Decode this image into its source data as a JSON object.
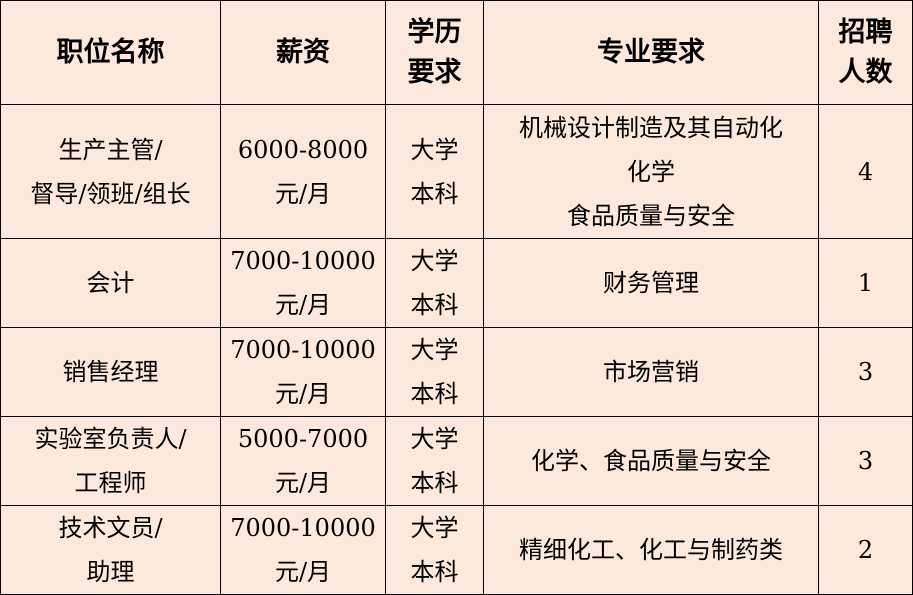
{
  "headers": [
    [
      "职位名称"
    ],
    [
      "薪资"
    ],
    [
      "学历",
      "要求"
    ],
    [
      "专业要求"
    ],
    [
      "招聘",
      "人数"
    ]
  ],
  "rows": [
    {
      "position": [
        "生产主管/",
        "督导/领班/组长"
      ],
      "salary": [
        "6000-8000",
        "元/月"
      ],
      "education": [
        "大学",
        "本科"
      ],
      "major": [
        "机械设计制造及其自动化",
        "化学",
        "食品质量与安全"
      ],
      "count": "4"
    },
    {
      "position": [
        "会计"
      ],
      "salary": [
        "7000-10000",
        "元/月"
      ],
      "education": [
        "大学",
        "本科"
      ],
      "major": [
        "财务管理"
      ],
      "count": "1"
    },
    {
      "position": [
        "销售经理"
      ],
      "salary": [
        "7000-10000",
        "元/月"
      ],
      "education": [
        "大学",
        "本科"
      ],
      "major": [
        "市场营销"
      ],
      "count": "3"
    },
    {
      "position": [
        "实验室负责人/",
        "工程师"
      ],
      "salary": [
        "5000-7000",
        "元/月"
      ],
      "education": [
        "大学",
        "本科"
      ],
      "major": [
        "化学、食品质量与安全"
      ],
      "count": "3"
    },
    {
      "position": [
        "技术文员/",
        "助理"
      ],
      "salary": [
        "7000-10000",
        "元/月"
      ],
      "education": [
        "大学",
        "本科"
      ],
      "major": [
        "精细化工、化工与制药类"
      ],
      "count": "2"
    }
  ]
}
